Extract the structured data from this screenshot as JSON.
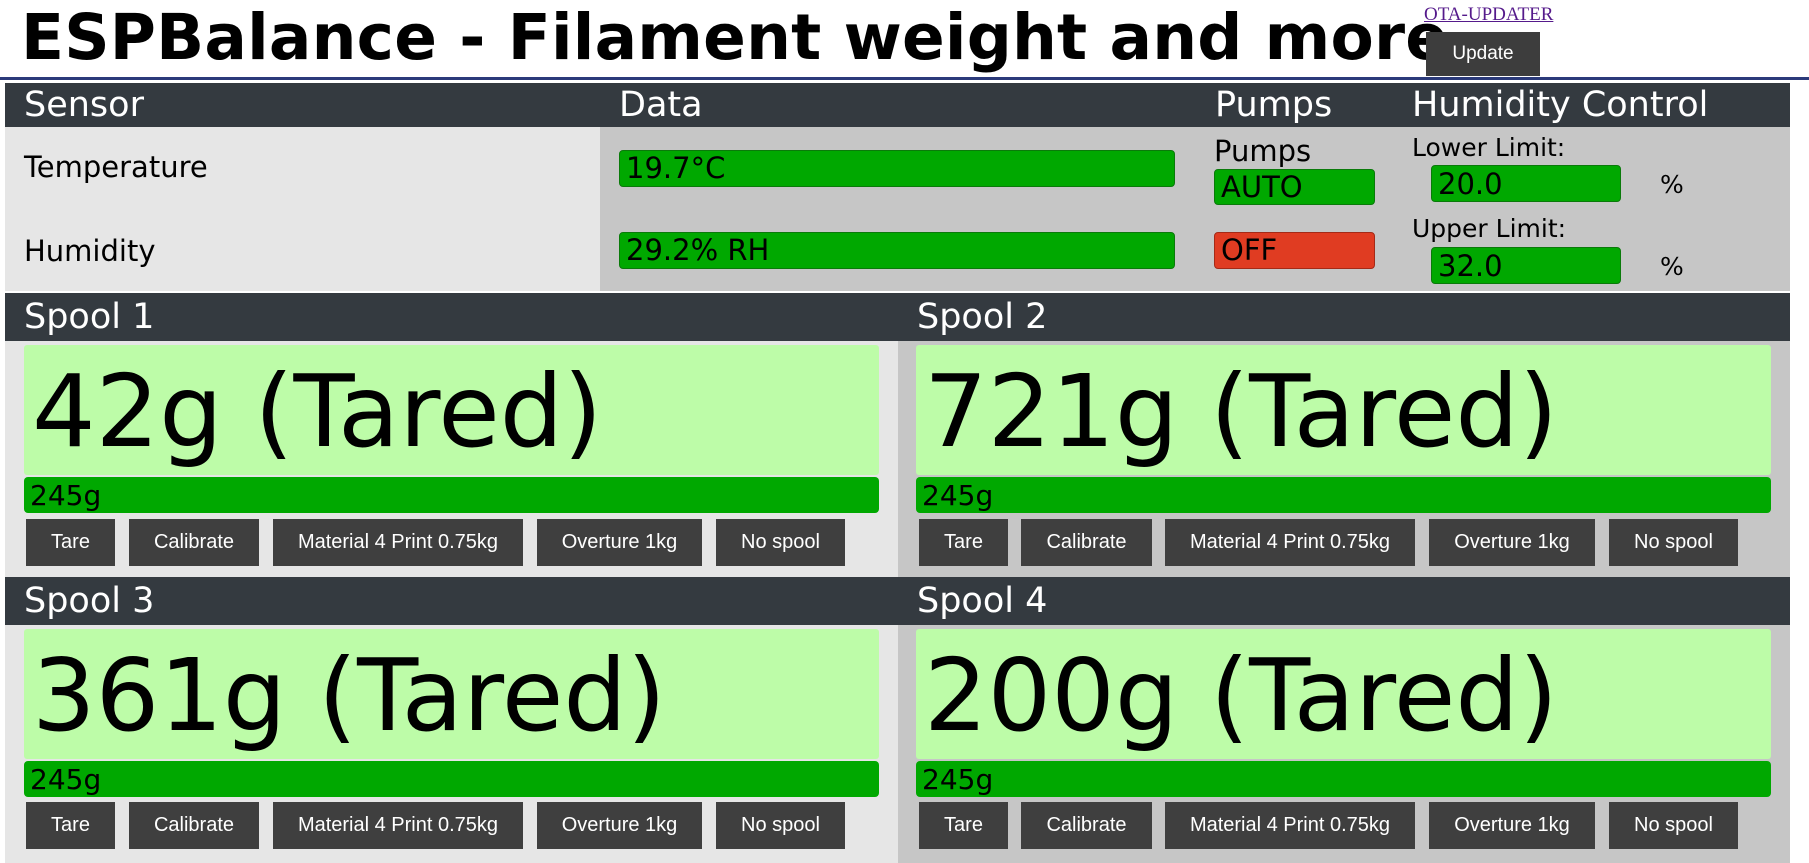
{
  "header": {
    "title": "ESPBalance - Filament weight and more",
    "ota_link": "OTA-UPDATER",
    "update_label": "Update"
  },
  "sensor_panel": {
    "col_sensor": "Sensor",
    "col_data": "Data",
    "col_pumps": "Pumps",
    "col_humidity_control": "Humidity Control",
    "temperature_label": "Temperature",
    "temperature_value": "19.7°C",
    "humidity_label": "Humidity",
    "humidity_value": "29.2% RH",
    "pumps_label": "Pumps",
    "pumps_mode": "AUTO",
    "pumps_state": "OFF",
    "lower_limit_label": "Lower Limit:",
    "lower_limit_value": "20.0",
    "upper_limit_label": "Upper Limit:",
    "upper_limit_value": "32.0",
    "percent": "%"
  },
  "spool_buttons": {
    "tare": "Tare",
    "calibrate": "Calibrate",
    "material_a": "Material 4 Print 0.75kg",
    "material_b": "Overture 1kg",
    "no_spool": "No spool"
  },
  "spools": [
    {
      "name": "Spool 1",
      "weight": "42g (Tared)",
      "bar": "245g"
    },
    {
      "name": "Spool 2",
      "weight": "721g (Tared)",
      "bar": "245g"
    },
    {
      "name": "Spool 3",
      "weight": "361g (Tared)",
      "bar": "245g"
    },
    {
      "name": "Spool 4",
      "weight": "200g (Tared)",
      "bar": "245g"
    }
  ],
  "colors": {
    "bar_dark": "#343a40",
    "ok_green": "#00a800",
    "weight_bg": "#bdfca8",
    "off_red": "#e03c22"
  }
}
